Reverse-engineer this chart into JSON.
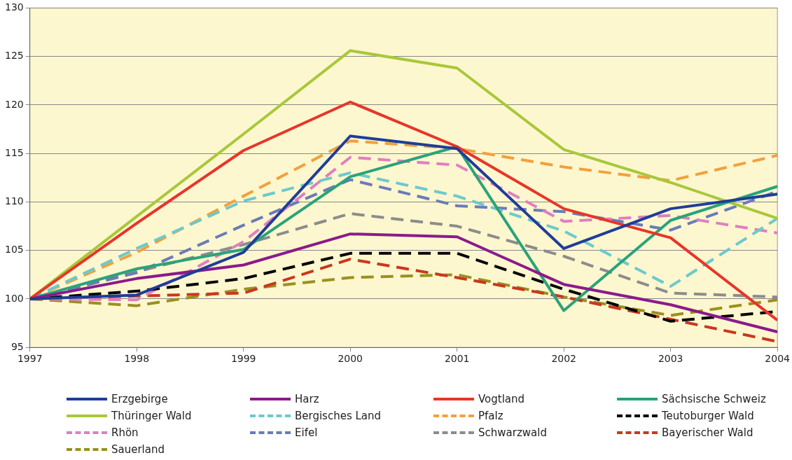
{
  "chart_data": {
    "type": "line",
    "x": [
      1997,
      1998,
      1999,
      2000,
      2001,
      2002,
      2003,
      2004
    ],
    "xlim": [
      1997,
      2004
    ],
    "xticks": [
      1997,
      1998,
      1999,
      2000,
      2001,
      2002,
      2003,
      2004
    ],
    "ylim": [
      95,
      130
    ],
    "yticks": [
      95,
      100,
      105,
      110,
      115,
      120,
      125,
      130
    ],
    "grid": "y",
    "legend": "bottom",
    "marker": "none",
    "series": [
      {
        "name": "Erzgebirge",
        "color": "#1f3d99",
        "line_style": "solid",
        "values": [
          100,
          100.4,
          104.8,
          116.8,
          115.5,
          105.2,
          109.3,
          110.8
        ]
      },
      {
        "name": "Harz",
        "color": "#8b1a8b",
        "line_style": "solid",
        "values": [
          100,
          102.1,
          103.5,
          106.7,
          106.4,
          101.5,
          99.4,
          96.6
        ]
      },
      {
        "name": "Vogtland",
        "color": "#e8352a",
        "line_style": "solid",
        "values": [
          100,
          107.8,
          115.3,
          120.3,
          115.7,
          109.3,
          106.3,
          97.8
        ]
      },
      {
        "name": "Sächsische Schweiz",
        "color": "#2aa37a",
        "line_style": "solid",
        "values": [
          100,
          103.1,
          105.1,
          112.6,
          115.7,
          98.8,
          108.1,
          111.6
        ]
      },
      {
        "name": "Thüringer Wald",
        "color": "#a8c83a",
        "line_style": "solid",
        "values": [
          100,
          108.5,
          117,
          125.6,
          123.8,
          115.4,
          112,
          108.3
        ]
      },
      {
        "name": "Bergisches Land",
        "color": "#6cc9cc",
        "line_style": "dashed",
        "values": [
          100,
          105.2,
          110.1,
          113,
          110.6,
          107,
          101.3,
          108.3
        ]
      },
      {
        "name": "Pfalz",
        "color": "#f2a03d",
        "line_style": "dashed",
        "values": [
          100,
          104.8,
          110.6,
          116.3,
          115.5,
          113.6,
          112.2,
          114.8
        ]
      },
      {
        "name": "Teutoburger Wald",
        "color": "#000000",
        "line_style": "dashed",
        "values": [
          100,
          100.8,
          102.1,
          104.7,
          104.7,
          101,
          97.7,
          98.7
        ]
      },
      {
        "name": "Rhön",
        "color": "#e07fc0",
        "line_style": "dashed",
        "values": [
          100,
          99.9,
          105.9,
          114.6,
          113.8,
          108,
          108.6,
          106.8
        ]
      },
      {
        "name": "Eifel",
        "color": "#6b7bb8",
        "line_style": "dashed",
        "values": [
          100,
          102.7,
          107.6,
          112.3,
          109.6,
          109,
          107.1,
          111.1
        ]
      },
      {
        "name": "Schwarzwald",
        "color": "#8c8c8c",
        "line_style": "dashed",
        "values": [
          100,
          102.8,
          105.6,
          108.8,
          107.5,
          104.4,
          100.6,
          100.2
        ]
      },
      {
        "name": "Bayerischer Wald",
        "color": "#c8381e",
        "line_style": "dashed",
        "values": [
          100,
          100.3,
          100.6,
          104.1,
          102.2,
          100.2,
          97.9,
          95.6
        ]
      },
      {
        "name": "Sauerland",
        "color": "#9a9020",
        "line_style": "dashed",
        "values": [
          100,
          99.3,
          101,
          102.2,
          102.5,
          100.2,
          98.3,
          99.9
        ]
      }
    ]
  }
}
